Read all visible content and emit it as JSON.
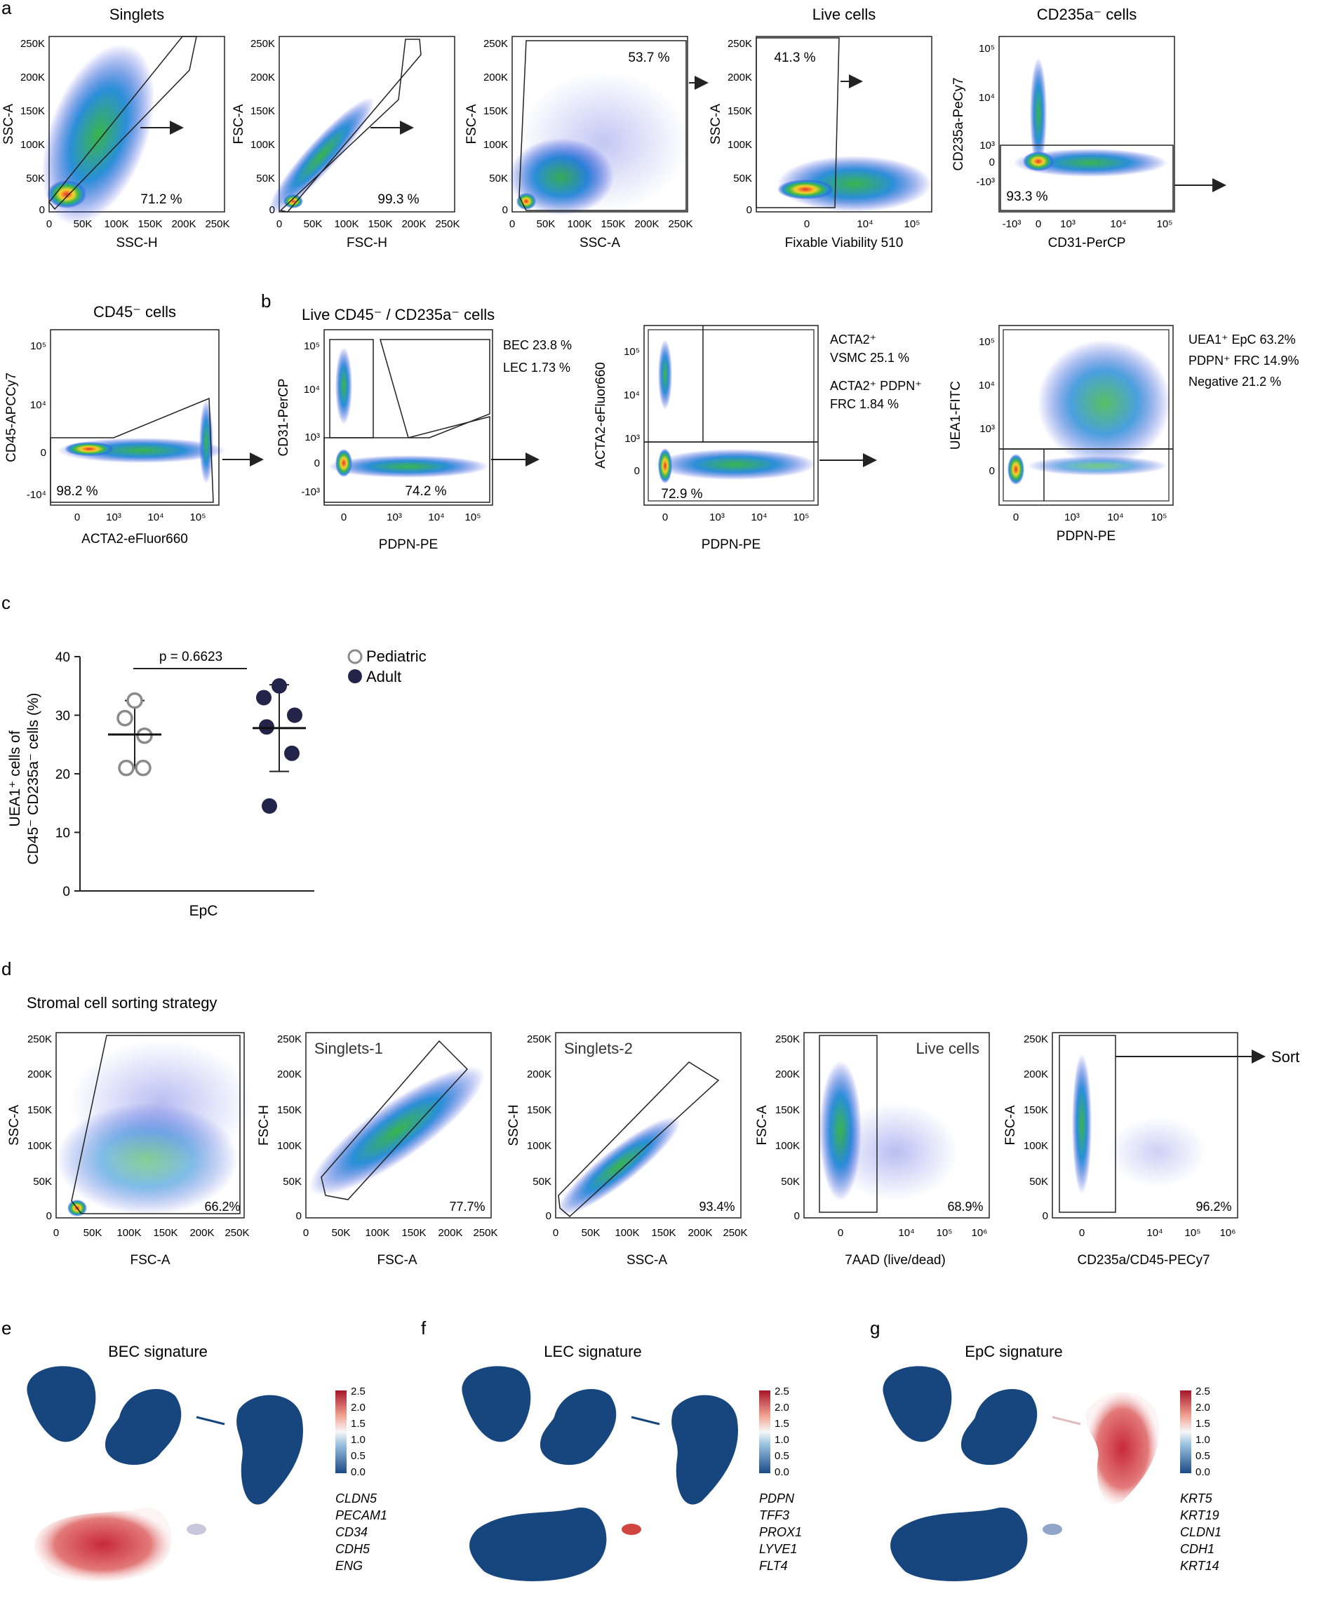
{
  "panel_letters": {
    "a": "a",
    "b": "b",
    "c": "c",
    "d": "d",
    "e": "e",
    "f": "f",
    "g": "g"
  },
  "panel_a": {
    "plots": [
      {
        "title": "Singlets",
        "xlabel": "SSC-H",
        "ylabel": "SSC-A",
        "pct": "71.2 %",
        "xticks": [
          "0",
          "50K",
          "100K",
          "150K",
          "200K",
          "250K"
        ],
        "yticks": [
          "250K",
          "200K",
          "150K",
          "100K",
          "50K",
          "0"
        ]
      },
      {
        "title": "",
        "xlabel": "FSC-H",
        "ylabel": "FSC-A",
        "pct": "99.3 %",
        "xticks": [
          "0",
          "50K",
          "100K",
          "150K",
          "200K",
          "250K"
        ],
        "yticks": [
          "250K",
          "200K",
          "150K",
          "100K",
          "50K",
          "0"
        ]
      },
      {
        "title": "",
        "xlabel": "SSC-A",
        "ylabel": "FSC-A",
        "pct": "53.7 %",
        "xticks": [
          "0",
          "50K",
          "100K",
          "150K",
          "200K",
          "250K"
        ],
        "yticks": [
          "250K",
          "200K",
          "150K",
          "100K",
          "50K",
          "0"
        ]
      },
      {
        "title": "Live cells",
        "xlabel": "Fixable Viability 510",
        "ylabel": "SSC-A",
        "pct": "41.3 %",
        "xticks": [
          "0",
          "10⁴",
          "10⁵"
        ],
        "yticks": [
          "250K",
          "200K",
          "150K",
          "100K",
          "50K",
          "0"
        ]
      },
      {
        "title": "CD235a⁻ cells",
        "xlabel": "CD31-PerCP",
        "ylabel": "CD235a-PeCy7",
        "pct": "93.3 %",
        "xticks": [
          "-10³",
          "0",
          "10³",
          "10⁴",
          "10⁵"
        ],
        "yticks": [
          "10⁵",
          "10⁴",
          "10³",
          "0",
          "-10³"
        ]
      }
    ]
  },
  "panel_b": {
    "cd45_plot": {
      "title": "CD45⁻ cells",
      "xlabel": "ACTA2-eFluor660",
      "ylabel": "CD45-APCCy7",
      "pct": "98.2 %",
      "xticks": [
        "0",
        "10³",
        "10⁴",
        "10⁵"
      ],
      "yticks": [
        "10⁵",
        "10⁴",
        "0",
        "-10⁴"
      ]
    },
    "heading": "Live CD45⁻ / CD235a⁻ cells",
    "cd31_plot": {
      "xlabel": "PDPN-PE",
      "ylabel": "CD31-PerCP",
      "pct": "74.2 %",
      "bec": "BEC 23.8 %",
      "lec": "LEC 1.73 %",
      "xticks": [
        "0",
        "10³",
        "10⁴",
        "10⁵"
      ],
      "yticks": [
        "10⁵",
        "10⁴",
        "10³",
        "0",
        "-10³"
      ]
    },
    "acta2_plot": {
      "xlabel": "PDPN-PE",
      "ylabel": "ACTA2-eFluor660",
      "pct": "72.9 %",
      "vsmc_line1": "ACTA2⁺",
      "vsmc_line2": "VSMC 25.1 %",
      "frc_line1": "ACTA2⁺ PDPN⁺",
      "frc_line2": "FRC  1.84 %",
      "xticks": [
        "0",
        "10³",
        "10⁴",
        "10⁵"
      ],
      "yticks": [
        "10⁵",
        "10⁴",
        "10³",
        "0"
      ]
    },
    "uea_plot": {
      "xlabel": "PDPN-PE",
      "ylabel": "UEA1-FITC",
      "epc": "UEA1⁺ EpC 63.2%",
      "frc": "PDPN⁺ FRC 14.9%",
      "neg": "Negative 21.2  %",
      "xticks": [
        "0",
        "10³",
        "10⁴",
        "10⁵"
      ],
      "yticks": [
        "10⁵",
        "10⁴",
        "10³",
        "0"
      ]
    }
  },
  "panel_c": {
    "chart_data": {
      "type": "scatter",
      "title": "",
      "xlabel": "EpC",
      "ylabel_line1": "UEA1⁺ cells of",
      "ylabel_line2": "CD45⁻ CD235a⁻ cells (%)",
      "ylim": [
        0,
        40
      ],
      "yticks": [
        "0",
        "10",
        "20",
        "30",
        "40"
      ],
      "pvalue": "p = 0.6623",
      "series": [
        {
          "name": "Pediatric",
          "values": [
            32.5,
            29.5,
            26.5,
            21.0,
            21.0
          ],
          "mean": 26.7,
          "sd_low": 21.0,
          "sd_high": 32.5,
          "color": "#8a8a8a"
        },
        {
          "name": "Adult",
          "values": [
            35.0,
            33.0,
            30.0,
            28.0,
            23.5,
            14.5
          ],
          "mean": 27.8,
          "sd_low": 20.4,
          "sd_high": 35.2,
          "color": "#22244a"
        }
      ]
    }
  },
  "panel_d": {
    "title": "Stromal cell sorting strategy",
    "plots": [
      {
        "label": "",
        "xlabel": "FSC-A",
        "ylabel": "SSC-A",
        "pct": "66.2%",
        "xticks": [
          "0",
          "50K",
          "100K",
          "150K",
          "200K",
          "250K"
        ],
        "yticks": [
          "250K",
          "200K",
          "150K",
          "100K",
          "50K",
          "0"
        ]
      },
      {
        "label": "Singlets-1",
        "xlabel": "FSC-A",
        "ylabel": "FSC-H",
        "pct": "77.7%",
        "xticks": [
          "0",
          "50K",
          "100K",
          "150K",
          "200K",
          "250K"
        ],
        "yticks": [
          "250K",
          "200K",
          "150K",
          "100K",
          "50K",
          "0"
        ]
      },
      {
        "label": "Singlets-2",
        "xlabel": "SSC-A",
        "ylabel": "SSC-H",
        "pct": "93.4%",
        "xticks": [
          "0",
          "50K",
          "100K",
          "150K",
          "200K",
          "250K"
        ],
        "yticks": [
          "250K",
          "200K",
          "150K",
          "100K",
          "50K",
          "0"
        ]
      },
      {
        "label": "Live cells",
        "xlabel": "7AAD (live/dead)",
        "ylabel": "FSC-A",
        "pct": "68.9%",
        "xticks": [
          "0",
          "10⁴",
          "10⁵",
          "10⁶"
        ],
        "yticks": [
          "250K",
          "200K",
          "150K",
          "100K",
          "50K",
          "0"
        ]
      },
      {
        "label": "",
        "xlabel": "CD235a/CD45-PECy7",
        "ylabel": "FSC-A",
        "pct": "96.2%",
        "xticks": [
          "0",
          "10⁴",
          "10⁵",
          "10⁶"
        ],
        "yticks": [
          "250K",
          "200K",
          "150K",
          "100K",
          "50K",
          "0"
        ]
      }
    ],
    "sort_label": "Sort"
  },
  "panel_efg": {
    "colorbar_ticks": [
      "2.5",
      "2.0",
      "1.5",
      "1.0",
      "0.5",
      "0.0"
    ],
    "umaps": [
      {
        "title": "BEC signature",
        "genes": [
          "CLDN5",
          "PECAM1",
          "CD34",
          "CDH5",
          "ENG"
        ],
        "hot": "bec"
      },
      {
        "title": "LEC signature",
        "genes": [
          "PDPN",
          "TFF3",
          "PROX1",
          "LYVE1",
          "FLT4"
        ],
        "hot": "lec"
      },
      {
        "title": "EpC signature",
        "genes": [
          "KRT5",
          "KRT19",
          "CLDN1",
          "CDH1",
          "KRT14"
        ],
        "hot": "epc"
      }
    ]
  },
  "colors": {
    "density_hot": "#e8322a",
    "density_mid": "#39b54a",
    "density_cold": "#1e2fd6",
    "umap_blue": "#17467e",
    "umap_red": "#c8293a"
  }
}
